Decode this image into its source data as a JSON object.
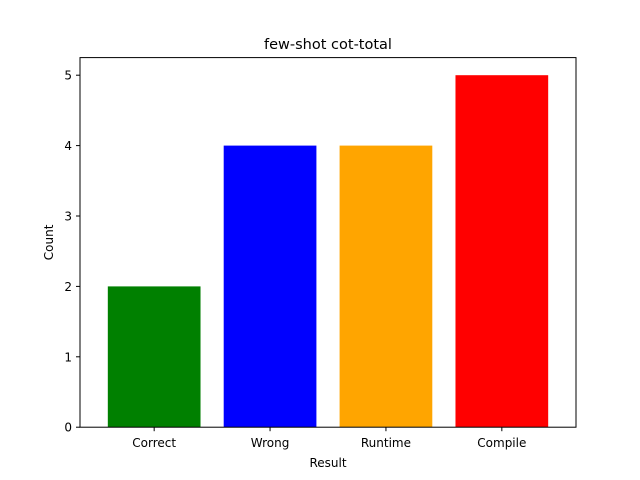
{
  "chart_data": {
    "type": "bar",
    "title": "few-shot cot-total",
    "xlabel": "Result",
    "ylabel": "Count",
    "categories": [
      "Correct",
      "Wrong",
      "Runtime",
      "Compile"
    ],
    "values": [
      2,
      4,
      4,
      5
    ],
    "colors": [
      "#008000",
      "#0000ff",
      "#ffa500",
      "#ff0000"
    ],
    "ylim": [
      0,
      5.25
    ],
    "yticks": [
      0,
      1,
      2,
      3,
      4,
      5
    ],
    "grid": false,
    "legend": "none"
  }
}
